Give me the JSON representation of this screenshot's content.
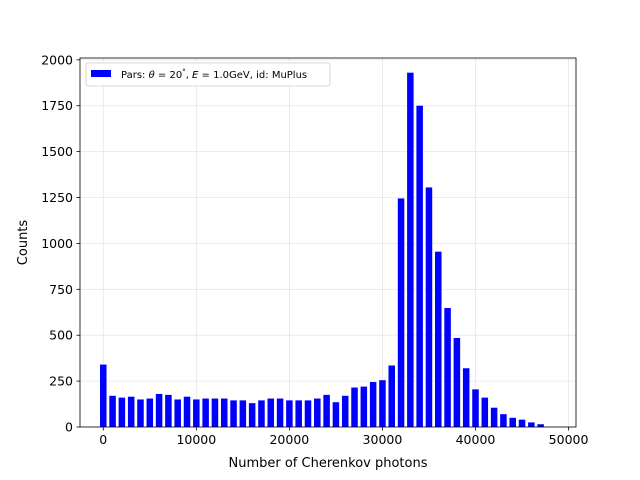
{
  "chart_data": {
    "type": "bar",
    "title": "",
    "xlabel": "Number of Cherenkov photons",
    "ylabel": "Counts",
    "xlim": [
      -2500,
      50800
    ],
    "ylim": [
      0,
      2010
    ],
    "xticks": [
      0,
      10000,
      20000,
      30000,
      40000,
      50000
    ],
    "yticks": [
      0,
      250,
      500,
      750,
      1000,
      1250,
      1500,
      1750,
      2000
    ],
    "grid": true,
    "legend_position": "top-left",
    "legend": {
      "prefix": "Pars: ",
      "theta_symbol": "θ",
      "equals": " = ",
      "theta_value": "20",
      "degree": "°",
      "sep": ", ",
      "e_symbol": "E",
      "energy": "1.0GeV",
      "id_text": ", id: MuPlus"
    },
    "bar_width": 700,
    "bar_color": "#0000ff",
    "x": [
      0,
      1000,
      2000,
      3000,
      4000,
      5000,
      6000,
      7000,
      8000,
      9000,
      10000,
      11000,
      12000,
      13000,
      14000,
      15000,
      16000,
      17000,
      18000,
      19000,
      20000,
      21000,
      22000,
      23000,
      24000,
      25000,
      26000,
      27000,
      28000,
      29000,
      30000,
      31000,
      32000,
      33000,
      34000,
      35000,
      36000,
      37000,
      38000,
      39000,
      40000,
      41000,
      42000,
      43000,
      44000,
      45000,
      46000,
      47000,
      48000
    ],
    "values": [
      340,
      170,
      160,
      165,
      150,
      155,
      180,
      175,
      150,
      165,
      150,
      155,
      155,
      155,
      145,
      145,
      130,
      145,
      155,
      155,
      145,
      145,
      145,
      155,
      175,
      135,
      170,
      215,
      220,
      245,
      255,
      335,
      1245,
      1930,
      1750,
      1305,
      955,
      648,
      485,
      320,
      205,
      160,
      105,
      70,
      50,
      40,
      25,
      15,
      0
    ]
  }
}
